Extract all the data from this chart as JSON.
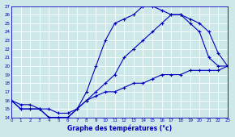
{
  "xlabel": "Graphe des températures (°c)",
  "bg_color": "#cde8e8",
  "line_color": "#0000bb",
  "grid_color": "#b0d4d4",
  "ylim": [
    14,
    27
  ],
  "xlim": [
    0,
    23
  ],
  "yticks": [
    14,
    15,
    16,
    17,
    18,
    19,
    20,
    21,
    22,
    23,
    24,
    25,
    26,
    27
  ],
  "xticks": [
    0,
    1,
    2,
    3,
    4,
    5,
    6,
    7,
    8,
    9,
    10,
    11,
    12,
    13,
    14,
    15,
    16,
    17,
    18,
    19,
    20,
    21,
    22,
    23
  ],
  "line1_x": [
    0,
    1,
    2,
    3,
    4,
    5,
    6,
    7,
    8,
    9,
    10,
    11,
    12,
    13,
    14,
    15,
    16,
    17,
    18,
    19,
    20,
    21,
    22,
    23
  ],
  "line1_y": [
    16,
    15,
    15,
    15,
    14,
    14,
    14,
    15,
    17,
    20,
    23,
    25,
    25.5,
    26,
    27,
    27,
    26.5,
    26,
    26,
    25,
    24,
    21,
    20,
    20
  ],
  "line2_x": [
    0,
    1,
    2,
    3,
    4,
    5,
    6,
    7,
    8,
    9,
    10,
    11,
    12,
    13,
    14,
    15,
    16,
    17,
    18,
    19,
    20,
    21,
    22,
    23
  ],
  "line2_y": [
    16,
    15,
    15,
    15,
    14,
    14,
    14,
    15,
    16,
    17,
    18,
    19,
    21,
    22,
    23,
    24,
    25,
    26,
    26,
    25.5,
    25,
    24,
    21.5,
    20
  ],
  "line3_x": [
    0,
    1,
    2,
    3,
    4,
    5,
    6,
    7,
    8,
    9,
    10,
    11,
    12,
    13,
    14,
    15,
    16,
    17,
    18,
    19,
    20,
    21,
    22,
    23
  ],
  "line3_y": [
    16,
    15.5,
    15.5,
    15,
    15,
    14.5,
    14.5,
    15,
    16,
    16.5,
    17,
    17,
    17.5,
    18,
    18,
    18.5,
    19,
    19,
    19,
    19.5,
    19.5,
    19.5,
    19.5,
    20
  ]
}
